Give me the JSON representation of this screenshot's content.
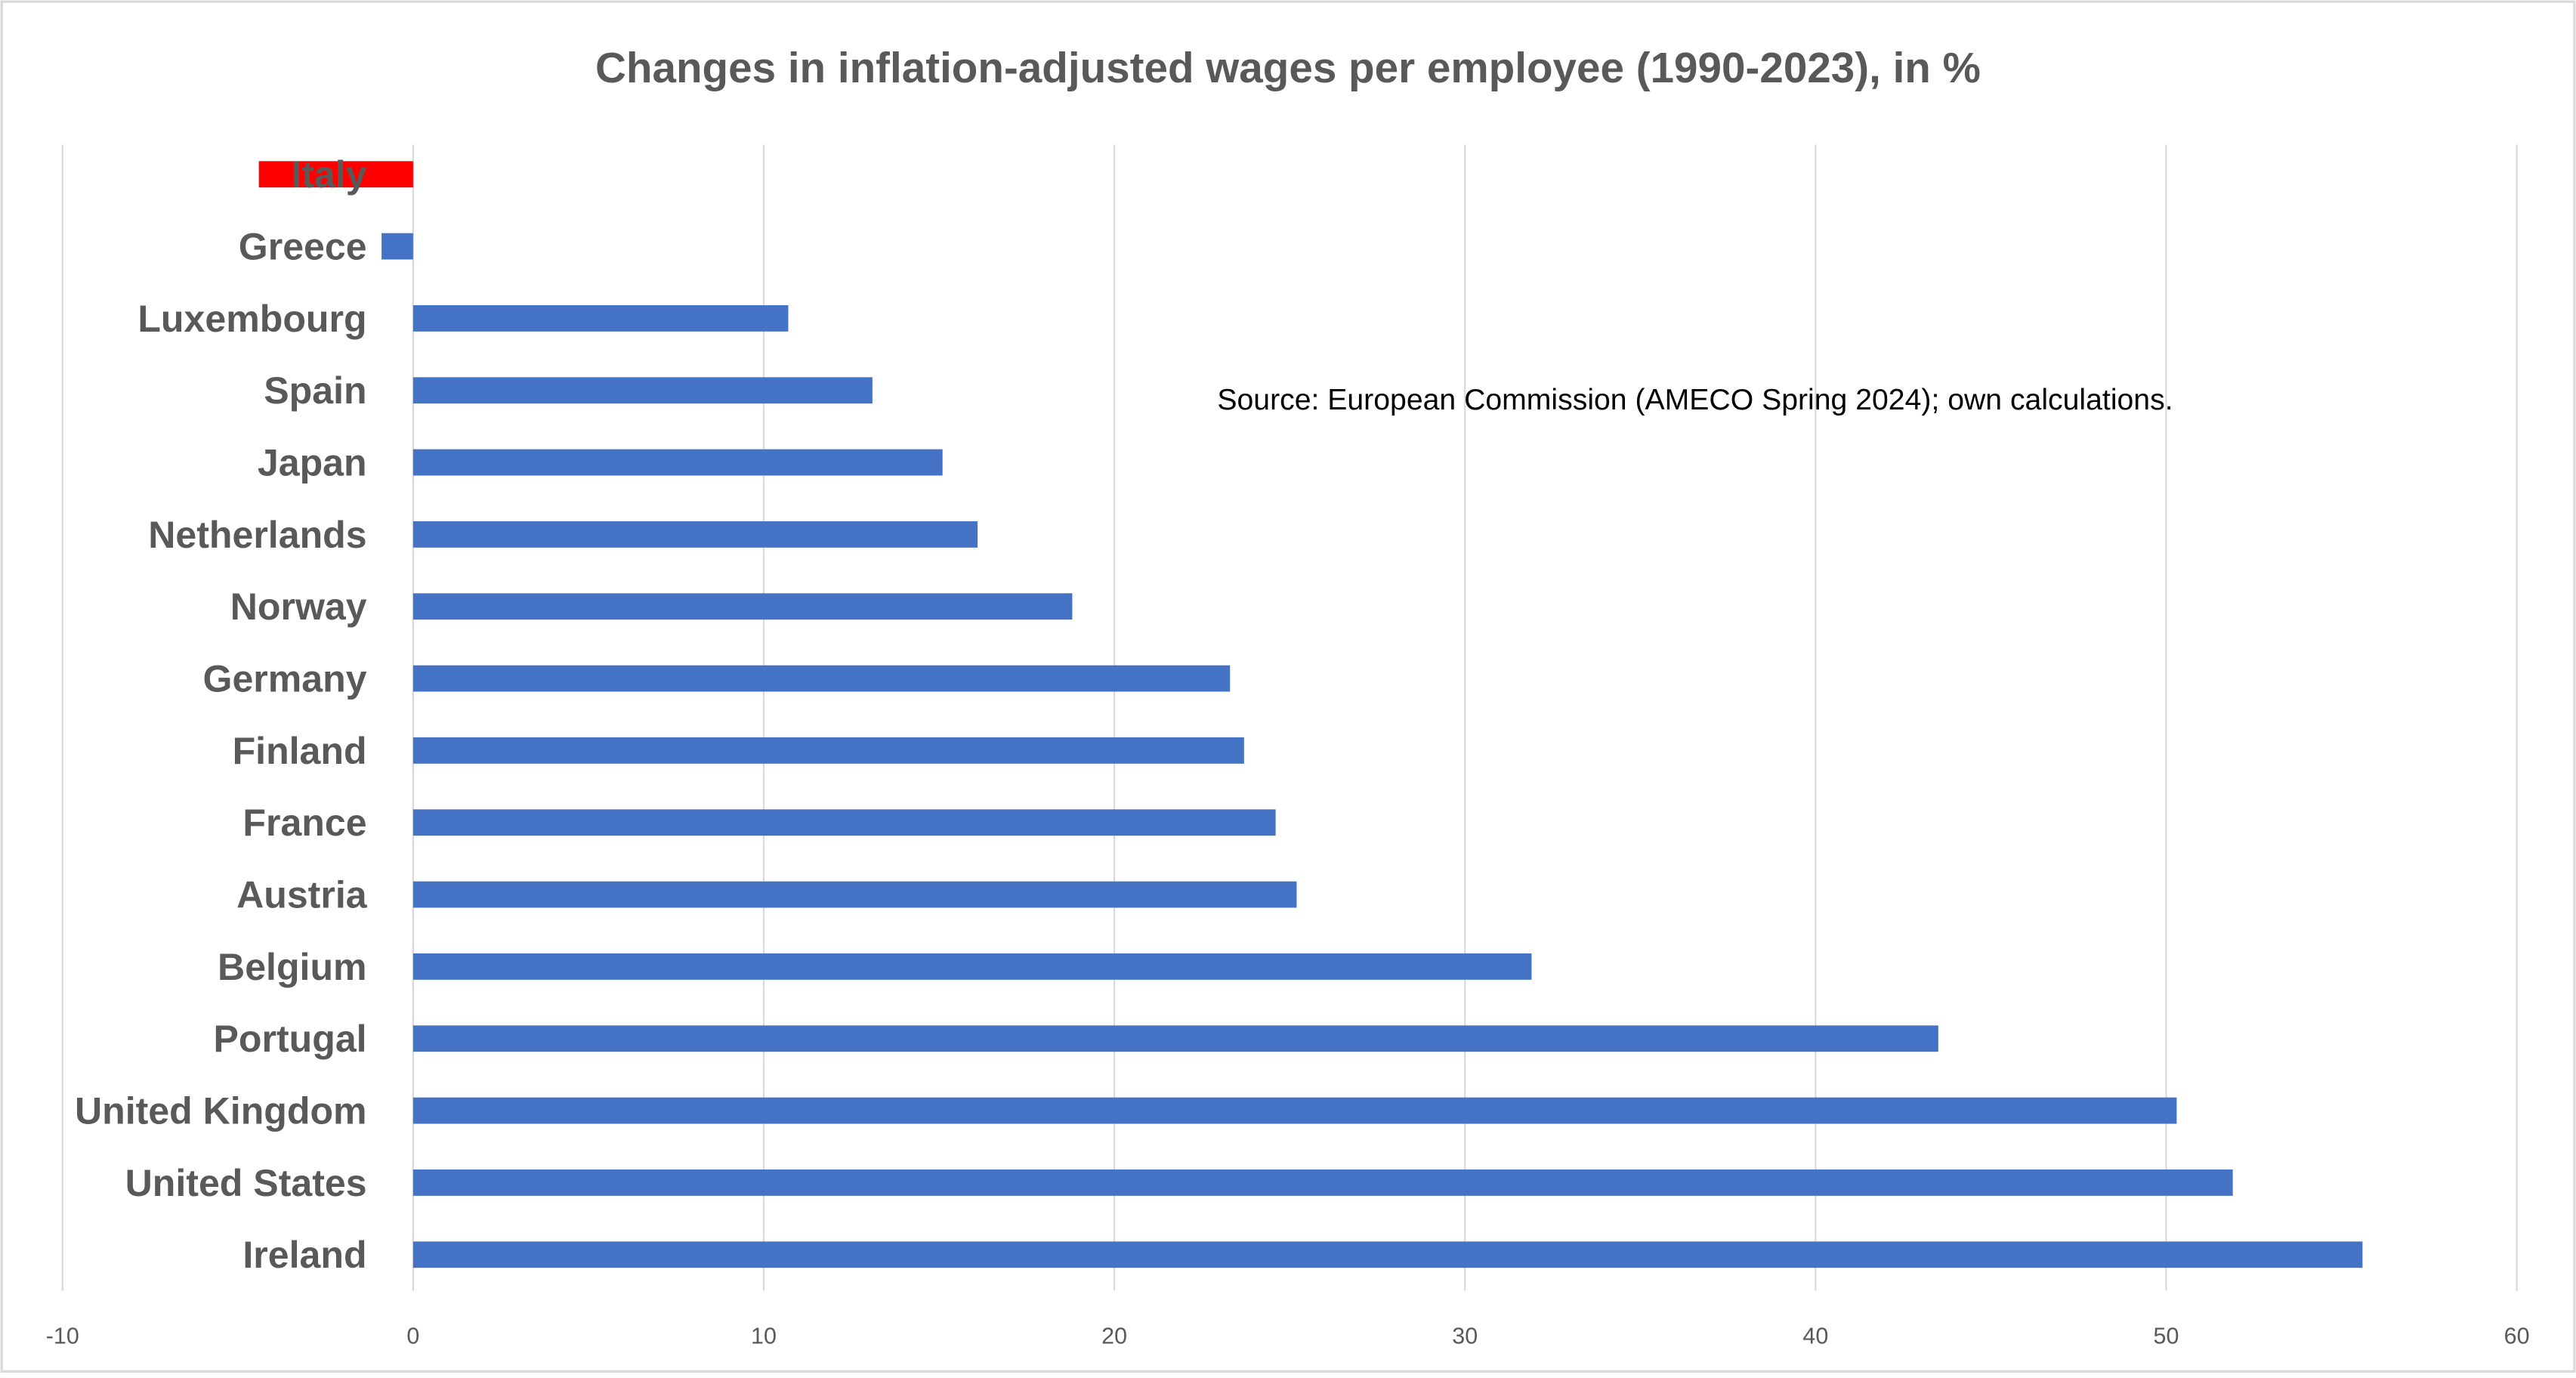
{
  "chart_data": {
    "type": "bar",
    "orientation": "horizontal",
    "title": "Changes in inflation-adjusted wages per employee (1990-2023), in %",
    "xlabel": "",
    "ylabel": "",
    "xlim": [
      -10,
      60
    ],
    "xticks": [
      -10,
      0,
      10,
      20,
      30,
      40,
      50,
      60
    ],
    "grid": true,
    "annotation": "Source: European Commission (AMECO Spring 2024); own calculations.",
    "categories": [
      "Italy",
      "Greece",
      "Luxembourg",
      "Spain",
      "Japan",
      "Netherlands",
      "Norway",
      "Germany",
      "Finland",
      "France",
      "Austria",
      "Belgium",
      "Portugal",
      "United Kingdom",
      "United States",
      "Ireland"
    ],
    "values": [
      -4.4,
      -0.9,
      10.7,
      13.1,
      15.1,
      16.1,
      18.8,
      23.3,
      23.7,
      24.6,
      25.2,
      31.9,
      43.5,
      50.3,
      51.9,
      55.6
    ],
    "colors": {
      "default": "#4472C4",
      "highlight": "#FF0000",
      "highlight_category": "Italy",
      "grid": "#D9D9D9",
      "text": "#595959"
    }
  }
}
